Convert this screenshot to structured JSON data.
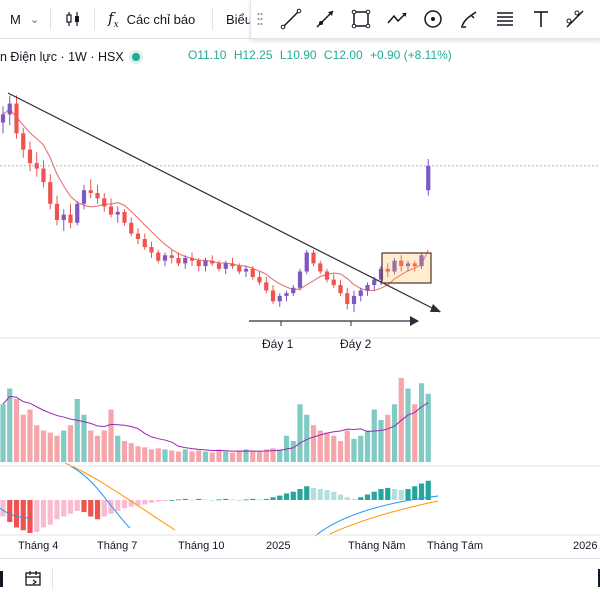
{
  "toolbar": {
    "interval": "M",
    "indicators_label": "Các chỉ báo",
    "next_label": "Biểu"
  },
  "legend": {
    "symbol": "n Điện lực · 1W · HSX",
    "open": "O11.10",
    "high": "H12.25",
    "low": "L10.90",
    "close": "C12.00",
    "change": "+0.90 (+8.11%)"
  },
  "annotations": {
    "bottom1": "Đáy 1",
    "bottom2": "Đáy 2"
  },
  "xaxis": [
    "Tháng 4",
    "Tháng 7",
    "Tháng 10",
    "2025",
    "Tháng Năm",
    "Tháng Tám",
    "2026"
  ],
  "colors": {
    "up": "#7e57c2",
    "down": "#ef5350",
    "vol_up": "#80cbc4",
    "vol_down": "#f4a6aa",
    "ma": "#e57373",
    "vol_ma": "#9c27b0"
  },
  "drawing_tools": [
    "trend-line-icon",
    "ray-icon",
    "rectangle-icon",
    "path-icon",
    "circle-icon",
    "brush-icon",
    "fib-icon",
    "text-icon",
    "measure-icon"
  ],
  "chart_data": {
    "type": "candlestick",
    "candles": [
      [
        13.6,
        14.2,
        13.2,
        13.9
      ],
      [
        13.9,
        14.6,
        13.5,
        14.3
      ],
      [
        14.3,
        14.6,
        13.0,
        13.2
      ],
      [
        13.2,
        13.4,
        12.3,
        12.6
      ],
      [
        12.6,
        12.9,
        11.8,
        12.1
      ],
      [
        12.1,
        12.5,
        11.6,
        11.9
      ],
      [
        11.9,
        12.2,
        11.2,
        11.4
      ],
      [
        11.4,
        11.7,
        10.4,
        10.6
      ],
      [
        10.6,
        10.9,
        9.8,
        10.0
      ],
      [
        10.0,
        10.4,
        9.6,
        10.2
      ],
      [
        10.2,
        10.6,
        9.7,
        9.9
      ],
      [
        9.9,
        10.7,
        9.8,
        10.6
      ],
      [
        10.6,
        11.3,
        10.4,
        11.1
      ],
      [
        11.1,
        11.5,
        10.8,
        11.0
      ],
      [
        11.0,
        11.3,
        10.6,
        10.8
      ],
      [
        10.8,
        11.0,
        10.3,
        10.5
      ],
      [
        10.5,
        10.8,
        10.1,
        10.2
      ],
      [
        10.2,
        10.5,
        9.9,
        10.3
      ],
      [
        10.3,
        10.4,
        9.8,
        9.9
      ],
      [
        9.9,
        10.1,
        9.4,
        9.5
      ],
      [
        9.5,
        9.7,
        9.1,
        9.3
      ],
      [
        9.3,
        9.5,
        8.9,
        9.0
      ],
      [
        9.0,
        9.2,
        8.6,
        8.8
      ],
      [
        8.8,
        8.9,
        8.4,
        8.5
      ],
      [
        8.5,
        8.8,
        8.3,
        8.7
      ],
      [
        8.7,
        8.9,
        8.4,
        8.6
      ],
      [
        8.6,
        8.8,
        8.3,
        8.4
      ],
      [
        8.4,
        8.7,
        8.2,
        8.6
      ],
      [
        8.6,
        8.8,
        8.3,
        8.5
      ],
      [
        8.5,
        8.6,
        8.1,
        8.3
      ],
      [
        8.3,
        8.6,
        8.1,
        8.5
      ],
      [
        8.5,
        8.7,
        8.3,
        8.4
      ],
      [
        8.4,
        8.5,
        8.1,
        8.2
      ],
      [
        8.2,
        8.5,
        8.0,
        8.4
      ],
      [
        8.4,
        8.6,
        8.2,
        8.3
      ],
      [
        8.3,
        8.4,
        8.0,
        8.1
      ],
      [
        8.1,
        8.3,
        7.9,
        8.2
      ],
      [
        8.2,
        8.3,
        7.8,
        7.9
      ],
      [
        7.9,
        8.1,
        7.6,
        7.7
      ],
      [
        7.7,
        7.9,
        7.3,
        7.4
      ],
      [
        7.4,
        7.6,
        6.9,
        7.0
      ],
      [
        7.0,
        7.3,
        6.8,
        7.2
      ],
      [
        7.2,
        7.4,
        7.0,
        7.3
      ],
      [
        7.3,
        7.6,
        7.2,
        7.5
      ],
      [
        7.5,
        8.2,
        7.4,
        8.1
      ],
      [
        8.1,
        8.9,
        8.0,
        8.8
      ],
      [
        8.8,
        8.9,
        8.3,
        8.4
      ],
      [
        8.4,
        8.5,
        8.0,
        8.1
      ],
      [
        8.1,
        8.2,
        7.7,
        7.8
      ],
      [
        7.8,
        8.0,
        7.5,
        7.6
      ],
      [
        7.6,
        7.8,
        7.2,
        7.3
      ],
      [
        7.3,
        7.5,
        6.7,
        6.9
      ],
      [
        6.9,
        7.4,
        6.6,
        7.2
      ],
      [
        7.2,
        7.5,
        7.0,
        7.4
      ],
      [
        7.4,
        7.7,
        7.2,
        7.6
      ],
      [
        7.6,
        7.9,
        7.4,
        7.8
      ],
      [
        7.8,
        8.3,
        7.6,
        8.2
      ],
      [
        8.2,
        8.4,
        7.9,
        8.1
      ],
      [
        8.1,
        8.6,
        8.0,
        8.5
      ],
      [
        8.5,
        8.7,
        8.1,
        8.3
      ],
      [
        8.3,
        8.5,
        8.1,
        8.4
      ],
      [
        8.4,
        8.5,
        8.1,
        8.3
      ],
      [
        8.3,
        8.8,
        8.2,
        8.7
      ],
      [
        11.1,
        12.25,
        10.9,
        12.0
      ]
    ],
    "volume": [
      0.55,
      0.7,
      0.6,
      0.45,
      0.5,
      0.35,
      0.3,
      0.28,
      0.25,
      0.3,
      0.35,
      0.6,
      0.45,
      0.3,
      0.25,
      0.3,
      0.5,
      0.25,
      0.2,
      0.18,
      0.15,
      0.14,
      0.12,
      0.13,
      0.12,
      0.11,
      0.1,
      0.12,
      0.1,
      0.11,
      0.1,
      0.09,
      0.12,
      0.1,
      0.09,
      0.1,
      0.12,
      0.11,
      0.1,
      0.12,
      0.13,
      0.12,
      0.25,
      0.2,
      0.55,
      0.45,
      0.35,
      0.3,
      0.28,
      0.25,
      0.2,
      0.3,
      0.22,
      0.25,
      0.3,
      0.5,
      0.4,
      0.45,
      0.55,
      0.8,
      0.7,
      0.55,
      0.75,
      0.65
    ],
    "macd_hist": [
      -0.3,
      -0.4,
      -0.5,
      -0.55,
      -0.6,
      -0.58,
      -0.5,
      -0.45,
      -0.35,
      -0.3,
      -0.25,
      -0.2,
      -0.22,
      -0.3,
      -0.35,
      -0.3,
      -0.25,
      -0.2,
      -0.15,
      -0.12,
      -0.1,
      -0.08,
      -0.05,
      -0.03,
      -0.02,
      0.0,
      0.01,
      0.02,
      0.01,
      0.02,
      0.01,
      0.0,
      0.01,
      0.02,
      0.01,
      0.0,
      0.01,
      0.02,
      0.01,
      0.02,
      0.05,
      0.08,
      0.12,
      0.15,
      0.2,
      0.25,
      0.22,
      0.2,
      0.18,
      0.15,
      0.1,
      0.05,
      0.02,
      0.05,
      0.1,
      0.15,
      0.2,
      0.22,
      0.2,
      0.18,
      0.2,
      0.25,
      0.3,
      0.35
    ]
  }
}
